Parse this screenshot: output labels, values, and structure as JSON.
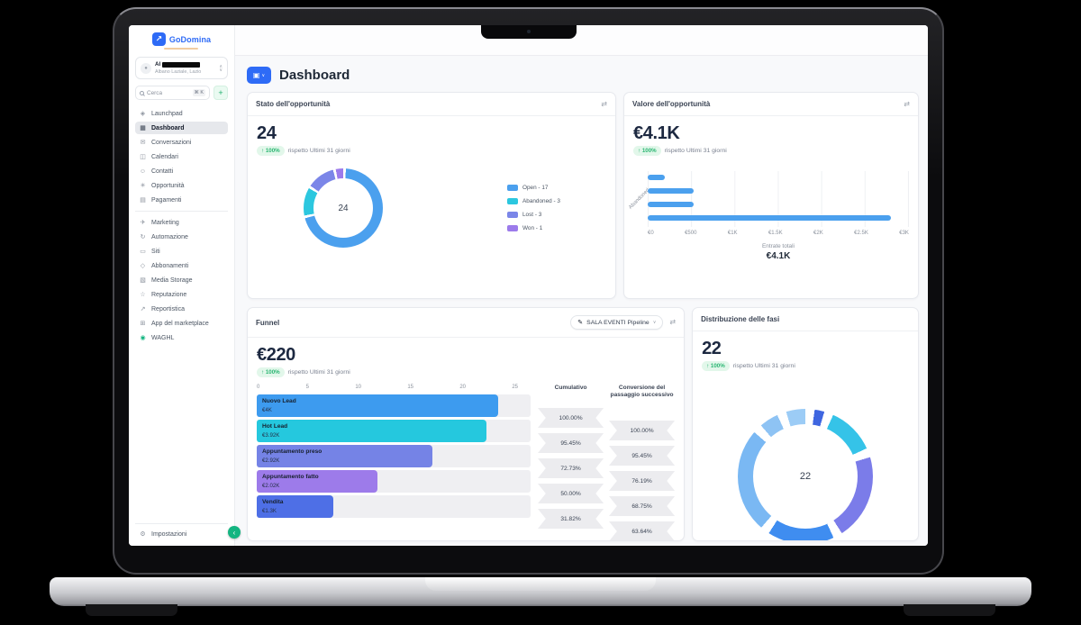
{
  "brand": {
    "name": "GoDomina"
  },
  "account": {
    "name_visible": "Al",
    "location": "Albano Laziale, Lazio"
  },
  "search": {
    "placeholder": "Cerca",
    "shortcut": "⌘ K",
    "add_label": "+"
  },
  "icons": {
    "logo_arrow": "↗",
    "avatar": "●",
    "chevron_up": "∧",
    "chevron_down": "∨",
    "exchange": "⇄",
    "pencil": "✎",
    "chat_fab": "‹"
  },
  "sidebar": {
    "primary": [
      {
        "label": "Launchpad",
        "glyph": "◈"
      },
      {
        "label": "Dashboard",
        "glyph": "▦"
      },
      {
        "label": "Conversazioni",
        "glyph": "✉"
      },
      {
        "label": "Calendari",
        "glyph": "◫"
      },
      {
        "label": "Contatti",
        "glyph": "☺"
      },
      {
        "label": "Opportunità",
        "glyph": "✳"
      },
      {
        "label": "Pagamenti",
        "glyph": "▤"
      }
    ],
    "secondary": [
      {
        "label": "Marketing",
        "glyph": "✈"
      },
      {
        "label": "Automazione",
        "glyph": "↻"
      },
      {
        "label": "Siti",
        "glyph": "▭"
      },
      {
        "label": "Abbonamenti",
        "glyph": "◇"
      },
      {
        "label": "Media Storage",
        "glyph": "▧"
      },
      {
        "label": "Reputazione",
        "glyph": "☆"
      },
      {
        "label": "Reportistica",
        "glyph": "↗"
      },
      {
        "label": "App del marketplace",
        "glyph": "⊞"
      },
      {
        "label": "WAGHL",
        "glyph": "◉"
      }
    ],
    "settings": {
      "label": "Impostazioni",
      "glyph": "⚙"
    }
  },
  "header": {
    "title": "Dashboard",
    "menu_glyph": "▣",
    "chevron": "∨"
  },
  "common": {
    "delta": "↑ 100%",
    "period": "rispetto Ultimi 31 giorni"
  },
  "cards": {
    "stato": {
      "title": "Stato dell'opportunità",
      "value": "24",
      "donut_center": "24",
      "segments": [
        {
          "label": "Open - 17",
          "color": "#4BA0EE",
          "value": 17
        },
        {
          "label": "Abandoned - 3",
          "color": "#2CC7DF",
          "value": 3
        },
        {
          "label": "Lost - 3",
          "color": "#7B86E8",
          "value": 3
        },
        {
          "label": "Won - 1",
          "color": "#9C7BEB",
          "value": 1
        }
      ]
    },
    "valore": {
      "title": "Valore dell'opportunità",
      "value": "€4.1K",
      "axis_label": "Abandoned",
      "bar_color": "#4BA0EE",
      "x_max": 3000,
      "bars": [
        {
          "value": 200
        },
        {
          "value": 530
        },
        {
          "value": 530
        },
        {
          "value": 2800
        }
      ],
      "x_ticks": [
        "€0",
        "€500",
        "€1K",
        "€1.5K",
        "€2K",
        "€2.5K",
        "€3K"
      ],
      "footer_label": "Entrate totali",
      "footer_value": "€4.1K"
    },
    "funnel": {
      "title": "Funnel",
      "pipeline_label": "SALA EVENTI Pipeline",
      "value": "€220",
      "x_max": 25,
      "x_ticks": [
        "0",
        "5",
        "10",
        "15",
        "20",
        "25"
      ],
      "stages": [
        {
          "name": "Nuovo Lead",
          "value": "€4K",
          "count": 22,
          "color": "#3D9BEF"
        },
        {
          "name": "Hot Lead",
          "value": "€3.92K",
          "count": 21,
          "color": "#25C8DE"
        },
        {
          "name": "Appuntamento preso",
          "value": "€2.92K",
          "count": 16,
          "color": "#7583E6"
        },
        {
          "name": "Appuntamento fatto",
          "value": "€2.02K",
          "count": 11,
          "color": "#9D7BEA"
        },
        {
          "name": "Vendita",
          "value": "€1.3K",
          "count": 7,
          "color": "#4E6FE6"
        }
      ],
      "cumulative_header": "Cumulativo",
      "conversion_header": "Conversione del passaggio successivo",
      "cumulative": [
        "100.00%",
        "95.45%",
        "72.73%",
        "50.00%",
        "31.82%"
      ],
      "conversion": [
        "100.00%",
        "95.45%",
        "76.19%",
        "68.75%",
        "63.64%"
      ]
    },
    "fasi": {
      "title": "Distribuzione delle fasi",
      "value": "22",
      "donut_center": "22",
      "segments": [
        {
          "color": "#3F66E0",
          "value": 1
        },
        {
          "color": "#35C3E8",
          "value": 3
        },
        {
          "color": "#7B7CE9",
          "value": 5
        },
        {
          "color": "#3F8DF0",
          "value": 4
        },
        {
          "color": "#7AB8F3",
          "value": 6
        },
        {
          "color": "#8EC3F4",
          "value": 1.5
        },
        {
          "color": "#9CCCF6",
          "value": 1.5
        }
      ]
    }
  }
}
